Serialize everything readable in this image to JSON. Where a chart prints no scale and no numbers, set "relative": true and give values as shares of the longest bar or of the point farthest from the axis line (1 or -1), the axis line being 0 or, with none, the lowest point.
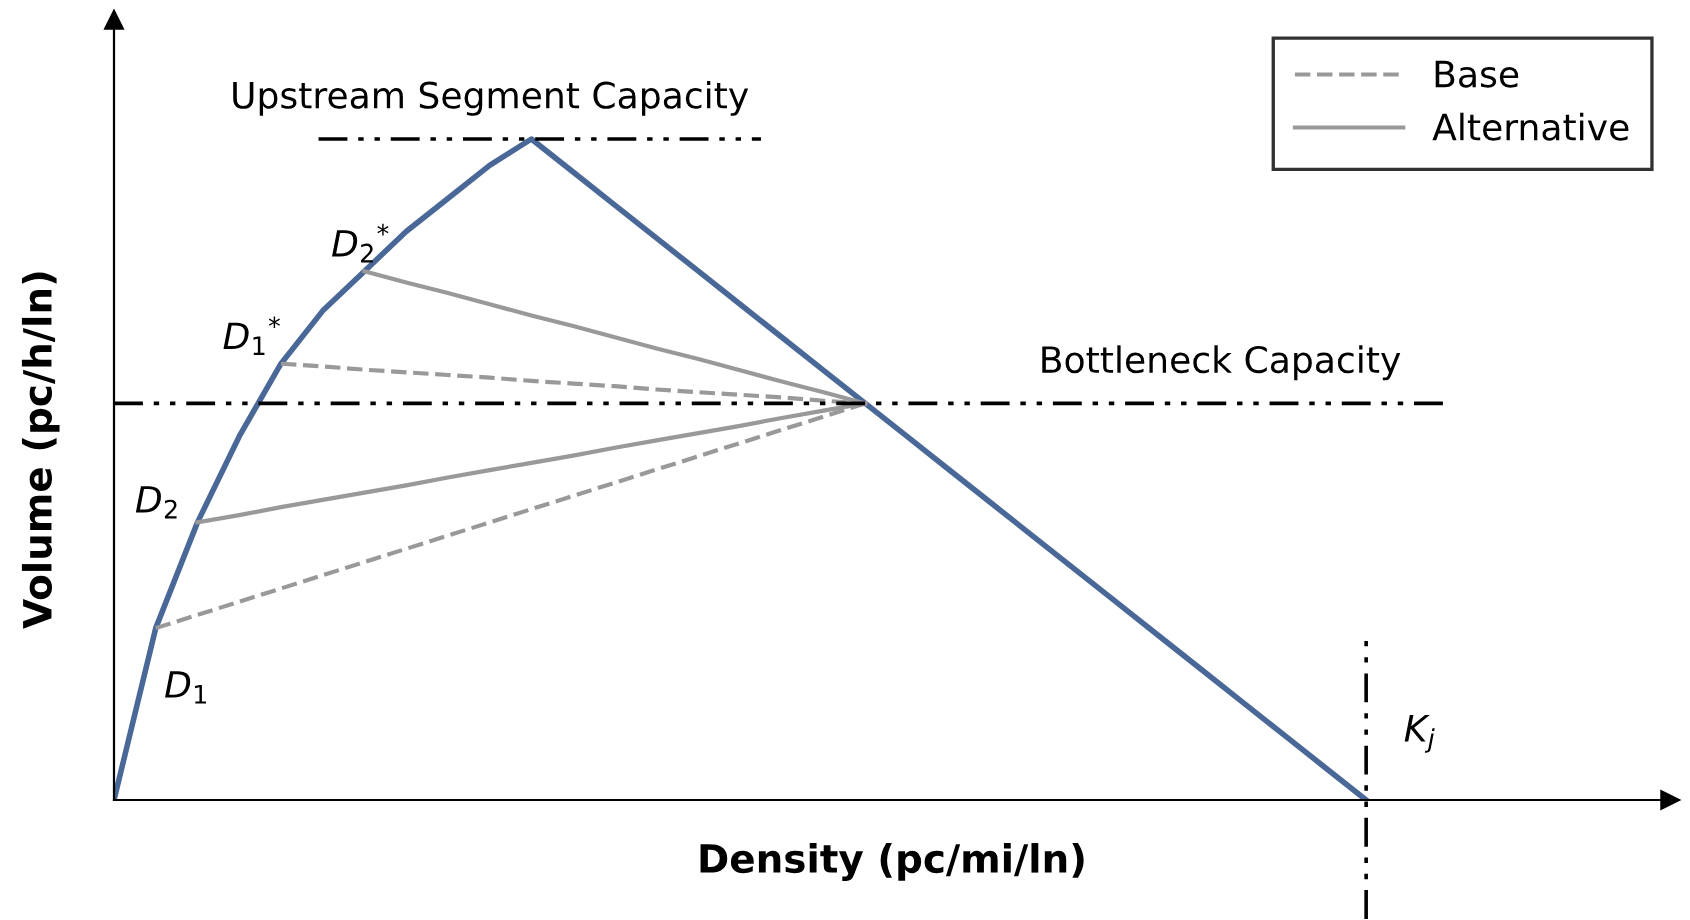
{
  "chart_data": {
    "type": "line",
    "relative": true,
    "xlabel": "Density (pc/mi/ln)",
    "ylabel": "Volume (pc/h/ln)",
    "legend": "top right",
    "grid": false,
    "marker": "none",
    "categories": [
      null,
      null,
      null,
      null,
      null,
      null,
      null,
      null,
      null,
      null,
      null,
      null,
      null,
      null,
      null,
      null,
      null,
      null,
      null,
      null,
      null,
      null,
      null,
      null,
      null,
      null,
      null,
      null,
      null,
      null,
      null,
      null,
      null,
      null,
      null,
      null,
      null,
      null
    ],
    "series": [
      {
        "color": "#4a6897",
        "line_style": "solid",
        "values": [
          0,
          0.26,
          0.42,
          0.55,
          0.66,
          0.74,
          0.8,
          0.86,
          0.91,
          0.96,
          1,
          0.95,
          0.9,
          0.85,
          0.8,
          0.75,
          0.7,
          0.65,
          0.6,
          0.55,
          0.5,
          0.45,
          0.4,
          0.35,
          0.3,
          0.25,
          0.2,
          0.15,
          0.1,
          0.05,
          0,
          null,
          null,
          null,
          null,
          null,
          null,
          null
        ]
      },
      {
        "name": "Base",
        "color": "#999999",
        "line_style": "dashed",
        "values": [
          null,
          0.26,
          0.28,
          0.3,
          0.32,
          0.34,
          0.36,
          0.38,
          0.4,
          0.42,
          0.44,
          0.46,
          0.48,
          0.5,
          0.52,
          0.54,
          0.56,
          0.58,
          0.6,
          null,
          null,
          null,
          null,
          null,
          null,
          null,
          null,
          null,
          null,
          null,
          null,
          null,
          null,
          null,
          null,
          null,
          null,
          null
        ]
      },
      {
        "color": "#999999",
        "line_style": "dashed",
        "values": [
          null,
          null,
          null,
          null,
          0.66,
          0.656,
          0.651,
          0.647,
          0.643,
          0.639,
          0.634,
          0.63,
          0.626,
          0.621,
          0.617,
          0.613,
          0.609,
          0.604,
          0.6,
          null,
          null,
          null,
          null,
          null,
          null,
          null,
          null,
          null,
          null,
          null,
          null,
          null,
          null,
          null,
          null,
          null,
          null,
          null
        ]
      },
      {
        "name": "Alternative",
        "color": "#999999",
        "line_style": "solid",
        "values": [
          null,
          null,
          0.42,
          0.431,
          0.443,
          0.454,
          0.465,
          0.476,
          0.488,
          0.499,
          0.51,
          0.521,
          0.533,
          0.544,
          0.555,
          0.566,
          0.578,
          0.589,
          0.6,
          null,
          null,
          null,
          null,
          null,
          null,
          null,
          null,
          null,
          null,
          null,
          null,
          null,
          null,
          null,
          null,
          null,
          null,
          null
        ]
      },
      {
        "color": "#999999",
        "line_style": "solid",
        "values": [
          null,
          null,
          null,
          null,
          null,
          null,
          0.8,
          0.783,
          0.767,
          0.75,
          0.733,
          0.717,
          0.7,
          0.683,
          0.667,
          0.65,
          0.633,
          0.617,
          0.6,
          null,
          null,
          null,
          null,
          null,
          null,
          null,
          null,
          null,
          null,
          null,
          null,
          null,
          null,
          null,
          null,
          null,
          null,
          null
        ]
      }
    ],
    "ref_lines": [
      {
        "axis": "y",
        "value": 1,
        "label": "Upstream Segment Capacity",
        "color": "#000000",
        "line_style": "dashdot"
      },
      {
        "axis": "y",
        "value": 0.6,
        "label": "Bottleneck Capacity",
        "color": "#000000",
        "line_style": "dashdot"
      }
    ],
    "annotations": [
      "D$_{1}$",
      "D$_{2}$",
      "D$_{1}$$^{*}$",
      "D$_{2}$$^{*}$",
      "K$_{j}$"
    ]
  }
}
